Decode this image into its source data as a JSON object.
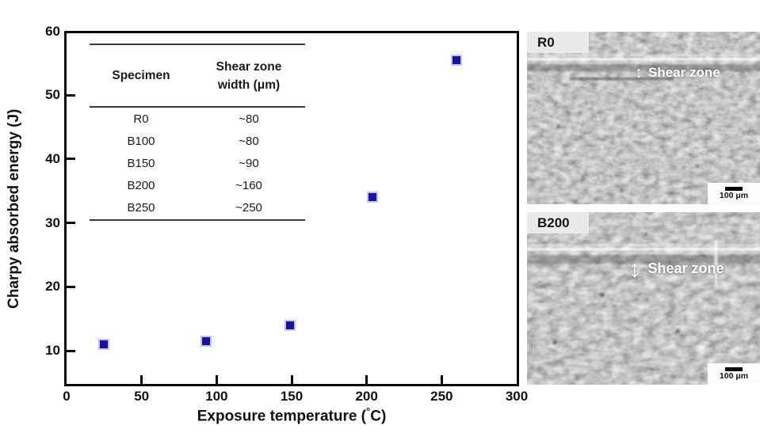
{
  "figure": {
    "background": "#ffffff",
    "axis_color": "#0a0a0a"
  },
  "chart_data": {
    "type": "scatter",
    "title": "",
    "xlabel": "Exposure temperature (°C)",
    "xlabel_parts": [
      "Exposure temperature (",
      "°",
      "C)"
    ],
    "ylabel": "Charpy absorbed energy (J)",
    "xlim": [
      0,
      300
    ],
    "ylim": [
      4.8,
      59.7
    ],
    "x_ticks": [
      0,
      50,
      100,
      150,
      200,
      250,
      300
    ],
    "y_ticks": [
      10,
      20,
      30,
      40,
      50,
      60
    ],
    "grid": false,
    "legend": "none",
    "marker": "square",
    "marker_color": "#1711ab",
    "marker_edge_color": "#c7c3ea",
    "series": [
      {
        "name": "Charpy absorbed energy",
        "points": [
          {
            "x": 25,
            "y": 11
          },
          {
            "x": 93,
            "y": 11.5
          },
          {
            "x": 149,
            "y": 14
          },
          {
            "x": 204,
            "y": 34
          },
          {
            "x": 260,
            "y": 55.5
          }
        ]
      }
    ],
    "inset_table": {
      "col1_header": "Specimen",
      "col2_header_lines": [
        "Shear zone",
        "width (μm)"
      ],
      "rows": [
        {
          "specimen": "R0",
          "width": "~80"
        },
        {
          "specimen": "B100",
          "width": "~80"
        },
        {
          "specimen": "B150",
          "width": "~90"
        },
        {
          "specimen": "B200",
          "width": "~160"
        },
        {
          "specimen": "B250",
          "width": "~250"
        }
      ]
    }
  },
  "sem_panels": [
    {
      "label": "R0",
      "annotation": "Shear zone",
      "arrow_icon": "↕",
      "scale_bar_label": "100 μm"
    },
    {
      "label": "B200",
      "annotation": "Shear zone",
      "arrow_icon": "↕",
      "scale_bar_label": "100 μm"
    }
  ]
}
